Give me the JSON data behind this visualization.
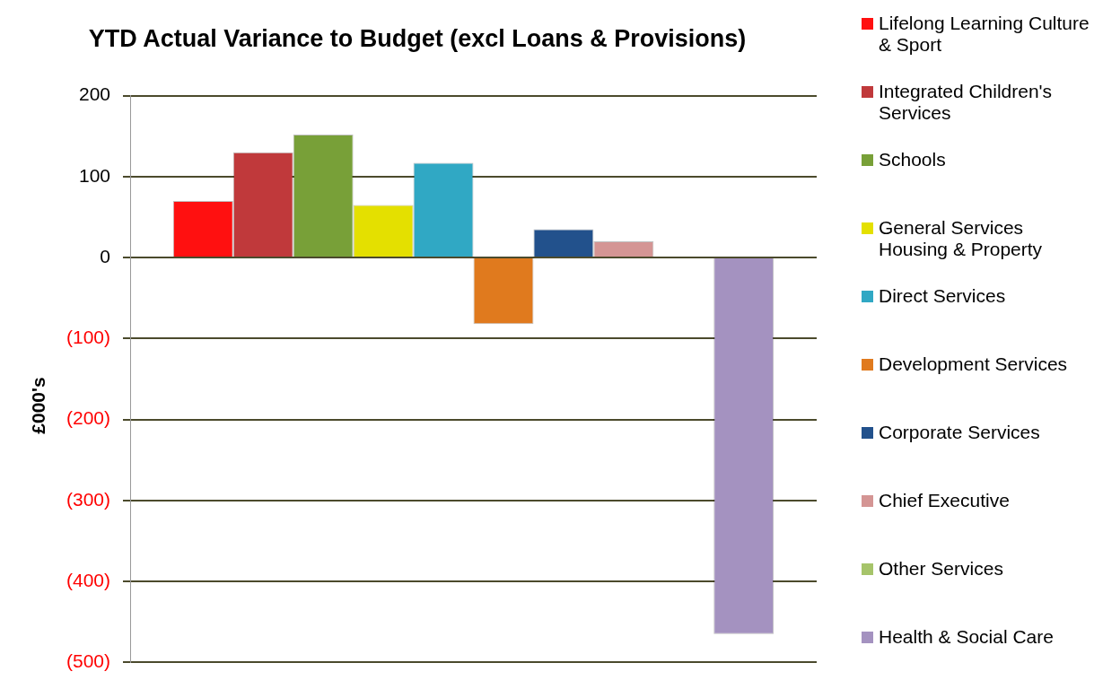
{
  "chart_data": {
    "type": "bar",
    "title": "YTD Actual Variance to Budget (excl Loans & Provisions)",
    "ylabel": "£000's",
    "categories": [
      null
    ],
    "series": [
      {
        "name": "Lifelong Learning Culture & Sport",
        "color": "#ff1010",
        "values": [
          70
        ]
      },
      {
        "name": "Integrated Children's Services",
        "color": "#c0393b",
        "values": [
          130
        ]
      },
      {
        "name": "Schools",
        "color": "#78a038",
        "values": [
          152
        ]
      },
      {
        "name": "General Services Housing & Property",
        "color": "#e4e000",
        "values": [
          65
        ]
      },
      {
        "name": "Direct Services",
        "color": "#30a8c4",
        "values": [
          117
        ]
      },
      {
        "name": "Development Services",
        "color": "#e07a1e",
        "values": [
          -82
        ]
      },
      {
        "name": "Corporate Services",
        "color": "#22518c",
        "values": [
          35
        ]
      },
      {
        "name": "Chief Executive",
        "color": "#d49594",
        "values": [
          20
        ]
      },
      {
        "name": "Other Services",
        "color": "#a6c46a",
        "values": [
          0
        ]
      },
      {
        "name": "Health & Social Care",
        "color": "#a492c0",
        "values": [
          -465
        ]
      }
    ],
    "ylim": [
      -500,
      200
    ],
    "yticks": [
      {
        "value": -500,
        "label": "(500)"
      },
      {
        "value": -400,
        "label": "(400)"
      },
      {
        "value": -300,
        "label": "(300)"
      },
      {
        "value": -200,
        "label": "(200)"
      },
      {
        "value": -100,
        "label": "(100)"
      },
      0,
      100,
      200
    ],
    "grid": "y",
    "legend": "right",
    "tick_labels": "y"
  }
}
